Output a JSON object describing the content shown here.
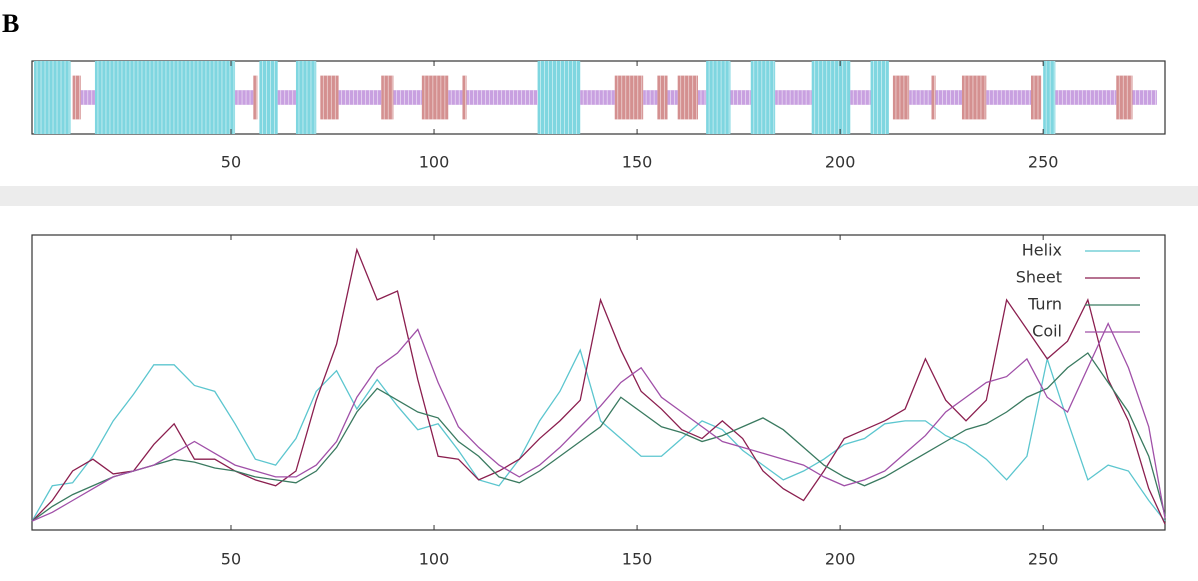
{
  "panel_label": "B",
  "chart_data": [
    {
      "type": "track",
      "xlim": [
        1,
        280
      ],
      "xticks": [
        50,
        100,
        150,
        200,
        250
      ],
      "series": [
        {
          "color": "#7fd6e0",
          "ranges": [
            [
              1.5,
              10.5
            ],
            [
              16.5,
              51
            ],
            [
              57,
              61.5
            ],
            [
              66,
              71
            ],
            [
              125.5,
              136
            ],
            [
              167,
              173
            ],
            [
              178,
              184
            ],
            [
              193,
              202.5
            ],
            [
              207.5,
              212
            ],
            [
              250,
              253
            ]
          ]
        },
        {
          "color": "#d49090",
          "ranges": [
            [
              11,
              13
            ],
            [
              55.5,
              56.5
            ],
            [
              72,
              76.5
            ],
            [
              87,
              90
            ],
            [
              97,
              103.5
            ],
            [
              107,
              108
            ],
            [
              144.5,
              151.5
            ],
            [
              155,
              157.5
            ],
            [
              160,
              165
            ],
            [
              213,
              217
            ],
            [
              222.5,
              223.5
            ],
            [
              230,
              236
            ],
            [
              247,
              249.5
            ],
            [
              268,
              272
            ]
          ]
        },
        {
          "color": "#c8a0e0",
          "ranges": [
            [
              13,
              16.5
            ],
            [
              51,
              55.5
            ],
            [
              61.5,
              66
            ],
            [
              76.5,
              87
            ],
            [
              90,
              97
            ],
            [
              103.5,
              107
            ],
            [
              108,
              125.5
            ],
            [
              136,
              144.5
            ],
            [
              151.5,
              155
            ],
            [
              157.5,
              160
            ],
            [
              165,
              167
            ],
            [
              173,
              178
            ],
            [
              184,
              193
            ],
            [
              202.5,
              207.5
            ],
            [
              217,
              222.5
            ],
            [
              223.5,
              230
            ],
            [
              236,
              247
            ],
            [
              253,
              268
            ],
            [
              272,
              278
            ]
          ]
        }
      ]
    },
    {
      "type": "line",
      "xlim": [
        1,
        280
      ],
      "xticks": [
        50,
        100,
        150,
        200,
        250
      ],
      "ylim": [
        0,
        100
      ],
      "x": [
        1,
        6,
        11,
        16,
        21,
        26,
        31,
        36,
        41,
        46,
        51,
        56,
        61,
        66,
        71,
        76,
        81,
        86,
        91,
        96,
        101,
        106,
        111,
        116,
        121,
        126,
        131,
        136,
        141,
        146,
        151,
        156,
        161,
        166,
        171,
        176,
        181,
        186,
        191,
        196,
        201,
        206,
        211,
        216,
        221,
        226,
        231,
        236,
        241,
        246,
        251,
        256,
        261,
        266,
        271,
        276,
        280
      ],
      "series": [
        {
          "name": "Helix",
          "color": "#5cc6cf",
          "values": [
            3,
            15,
            16,
            25,
            37,
            46,
            56,
            56,
            49,
            47,
            36,
            24,
            22,
            31,
            47,
            54,
            41,
            51,
            42,
            34,
            36,
            27,
            17,
            15,
            24,
            37,
            47,
            61,
            37,
            31,
            25,
            25,
            31,
            37,
            34,
            27,
            22,
            17,
            20,
            24,
            29,
            31,
            36,
            37,
            37,
            32,
            29,
            24,
            17,
            25,
            58,
            37,
            17,
            22,
            20,
            10,
            3
          ]
        },
        {
          "name": "Sheet",
          "color": "#8b1f4f",
          "values": [
            3,
            10,
            20,
            24,
            19,
            20,
            29,
            36,
            24,
            24,
            20,
            17,
            15,
            20,
            44,
            63,
            95,
            78,
            81,
            51,
            25,
            24,
            17,
            20,
            24,
            31,
            37,
            44,
            78,
            61,
            47,
            41,
            34,
            31,
            37,
            31,
            20,
            14,
            10,
            20,
            31,
            34,
            37,
            41,
            58,
            44,
            37,
            44,
            78,
            68,
            58,
            64,
            78,
            51,
            37,
            14,
            2
          ]
        },
        {
          "name": "Turn",
          "color": "#3a7a60",
          "values": [
            3,
            8,
            12,
            15,
            18,
            20,
            22,
            24,
            23,
            21,
            20,
            18,
            17,
            16,
            20,
            28,
            40,
            48,
            44,
            40,
            38,
            30,
            25,
            18,
            16,
            20,
            25,
            30,
            35,
            45,
            40,
            35,
            33,
            30,
            32,
            35,
            38,
            34,
            28,
            22,
            18,
            15,
            18,
            22,
            26,
            30,
            34,
            36,
            40,
            45,
            48,
            55,
            60,
            50,
            40,
            25,
            5
          ]
        },
        {
          "name": "Coil",
          "color": "#a050a8",
          "values": [
            3,
            6,
            10,
            14,
            18,
            20,
            22,
            26,
            30,
            26,
            22,
            20,
            18,
            18,
            22,
            30,
            45,
            55,
            60,
            68,
            50,
            35,
            28,
            22,
            18,
            22,
            28,
            35,
            42,
            50,
            55,
            45,
            40,
            35,
            30,
            28,
            26,
            24,
            22,
            18,
            15,
            17,
            20,
            26,
            32,
            40,
            45,
            50,
            52,
            58,
            45,
            40,
            55,
            70,
            55,
            35,
            4
          ]
        }
      ]
    }
  ]
}
